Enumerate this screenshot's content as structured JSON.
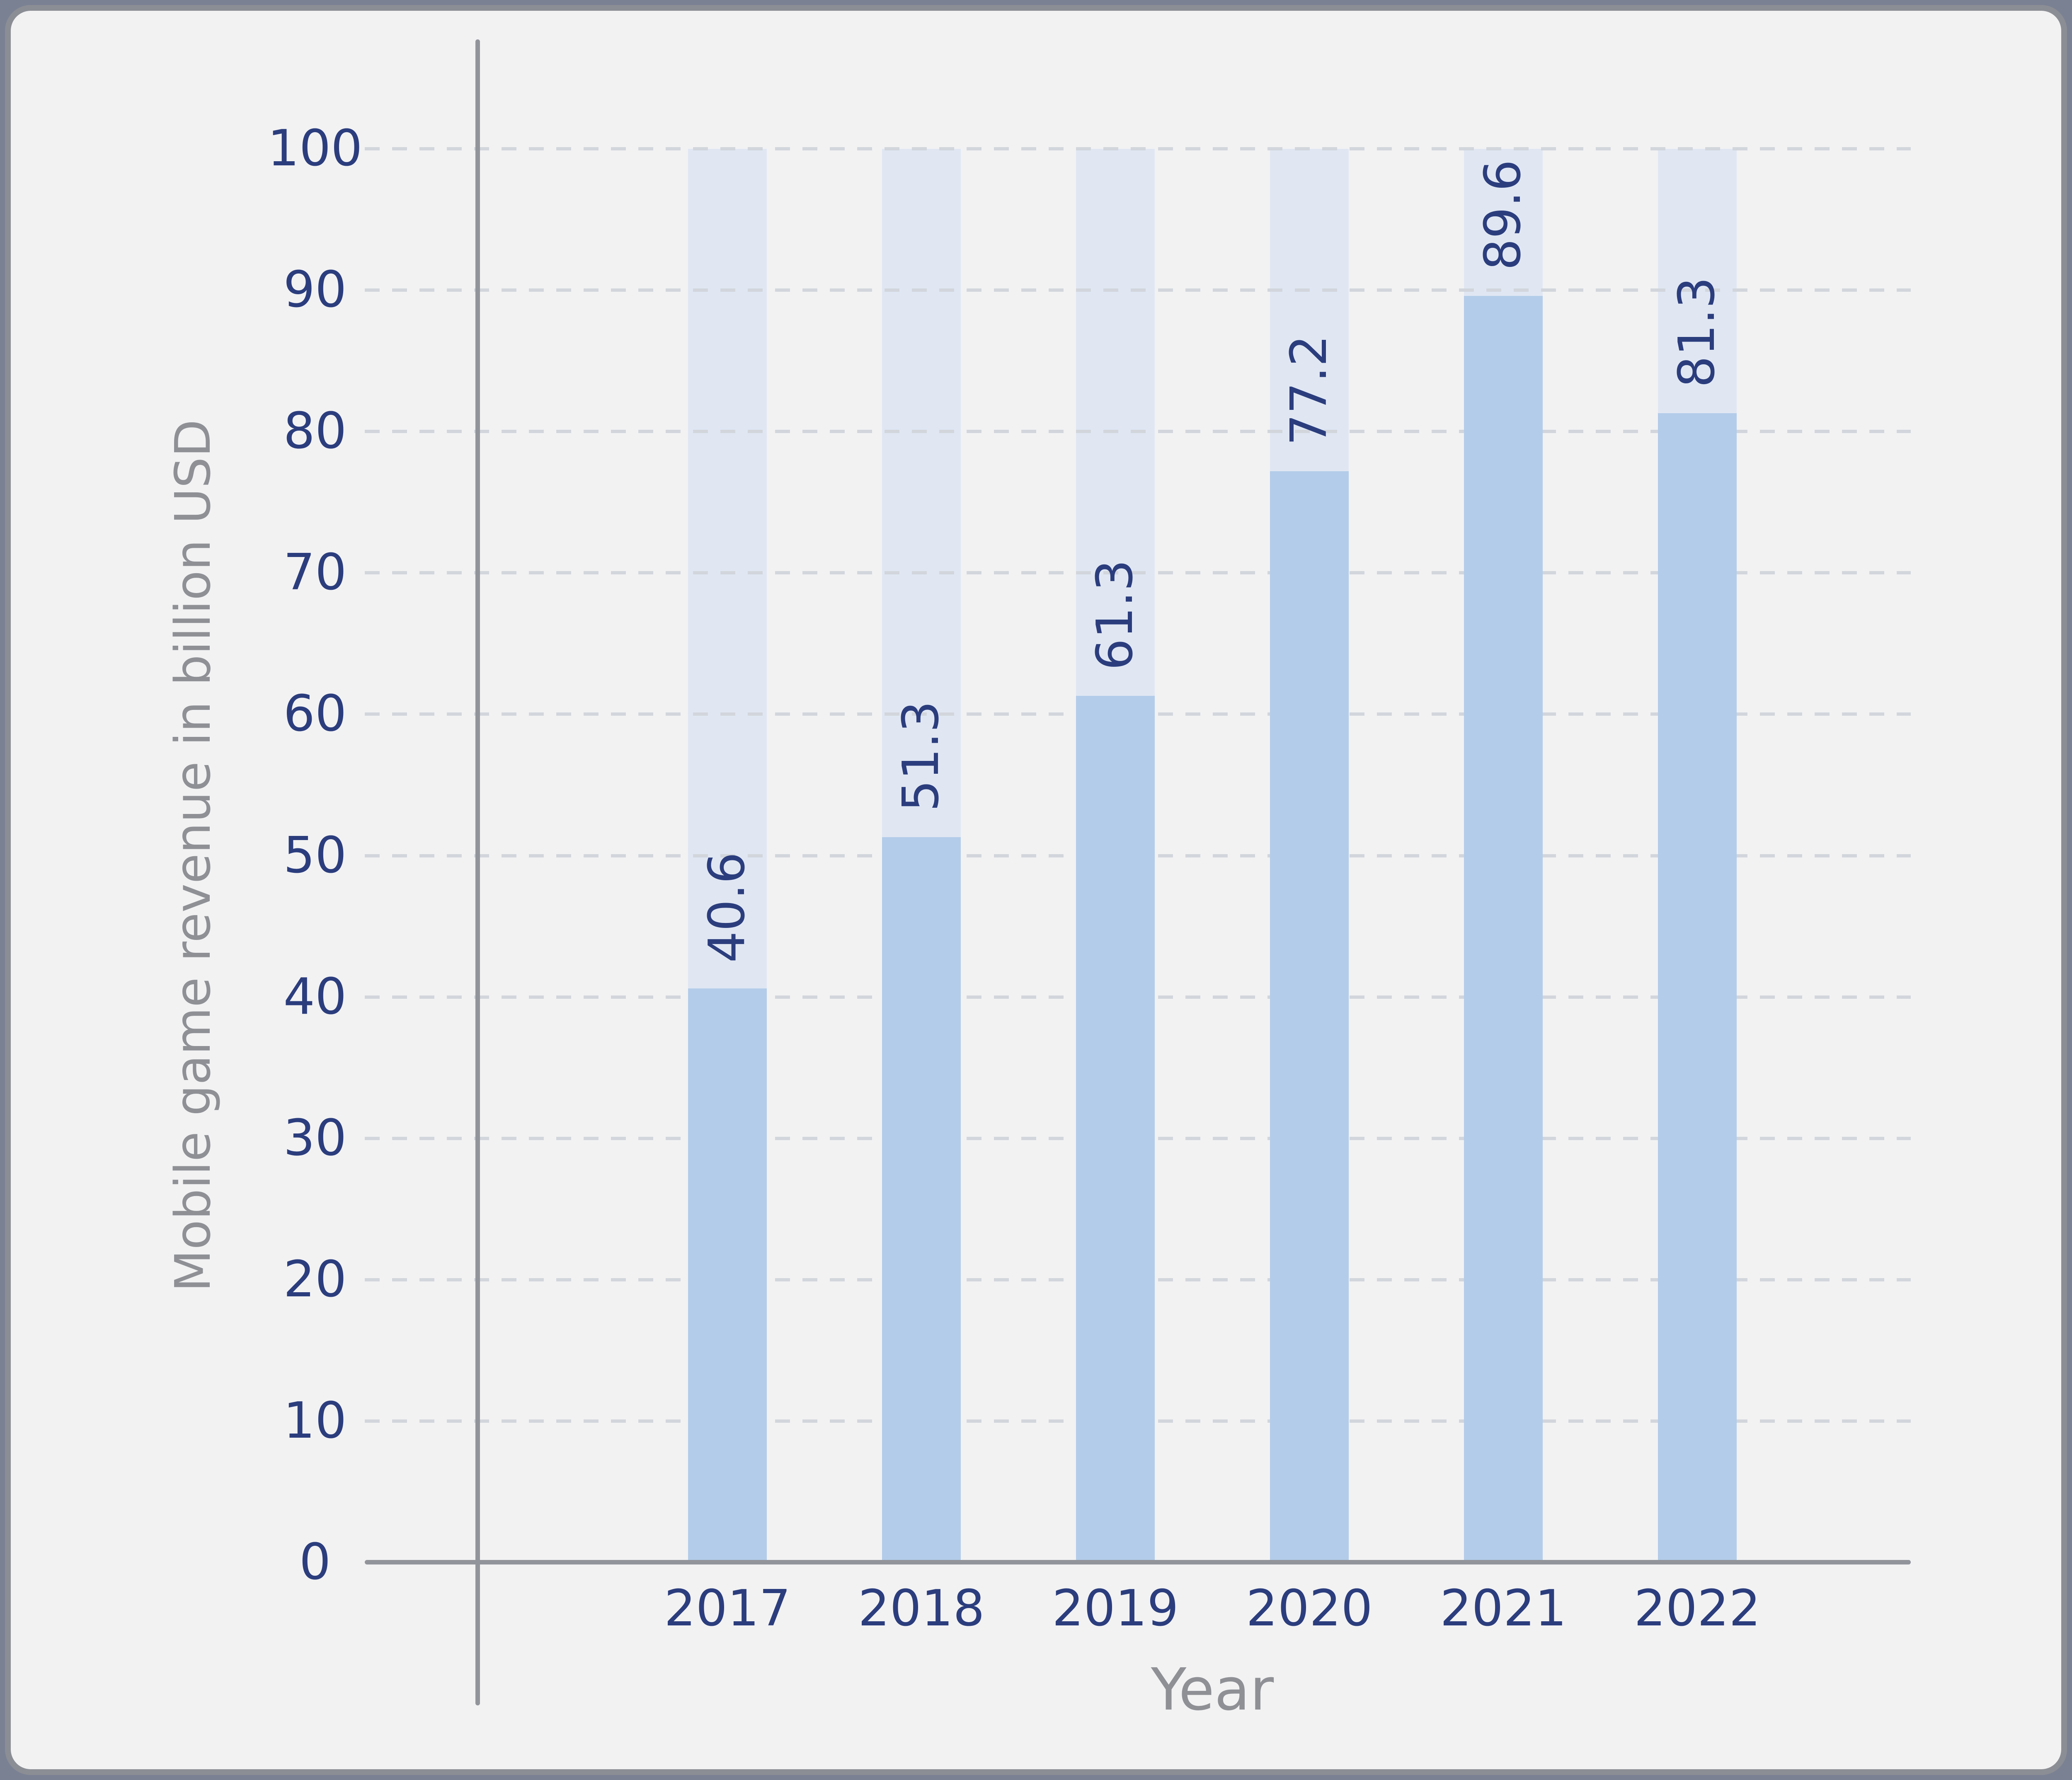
{
  "page": {
    "background_color": "#7a8193",
    "panel_background": "#f2f2f3",
    "panel_border_color": "#8c8e95"
  },
  "chart_data": {
    "type": "bar",
    "title": "",
    "categories": [
      "2017",
      "2018",
      "2019",
      "2020",
      "2021",
      "2022"
    ],
    "values": [
      40.6,
      51.3,
      61.3,
      77.2,
      89.6,
      81.3
    ],
    "bar_value_labels": [
      "40.6",
      "51.3",
      "61.3",
      "77.2",
      "89.6",
      "81.3"
    ],
    "xlabel": "Year",
    "ylabel": "Mobile game revenue in billion USD",
    "ylim": [
      0,
      100
    ],
    "yticks": [
      "0",
      "10",
      "20",
      "30",
      "40",
      "50",
      "60",
      "70",
      "80",
      "90",
      "100"
    ],
    "grid": "horizontal-dashed",
    "legend": "none",
    "bar_label_rotation": "90deg-ccw-bottom-to-top",
    "bar_track_full_height": true,
    "colors": {
      "bar_fill": "#b3cce9",
      "bar_track": "#e0e7f3",
      "value_label": "#2b3d7d",
      "tick_label": "#2b3d7d",
      "axis_line": "#92949b",
      "gridline": "#d2d6dc",
      "axis_title": "#8e9095"
    }
  }
}
